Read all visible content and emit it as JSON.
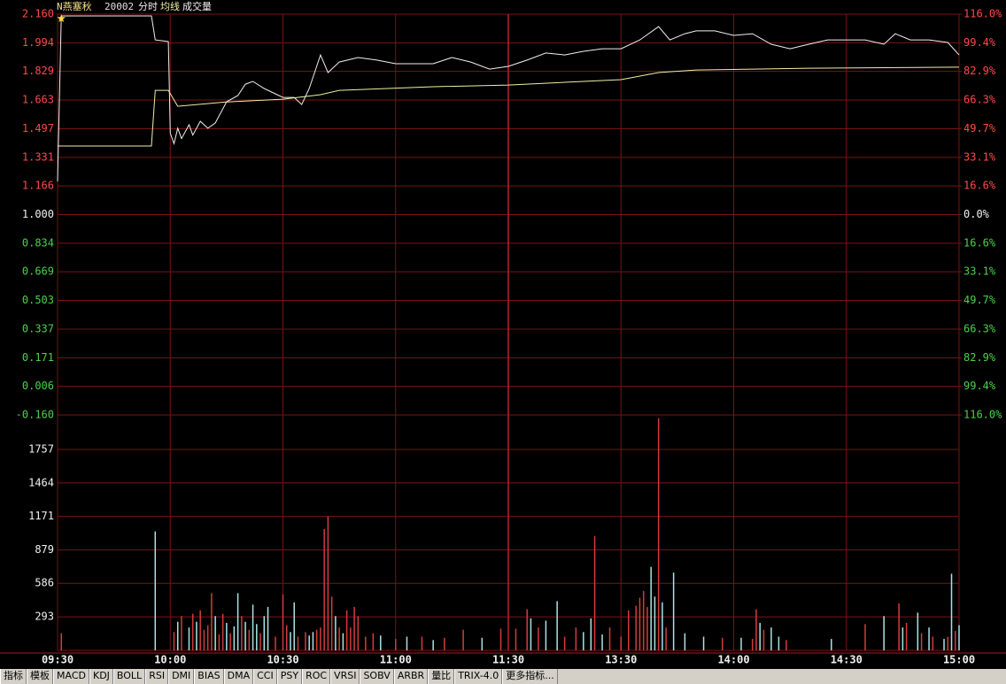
{
  "chart_data": [
    {
      "type": "line",
      "title": "N燕塞秋",
      "subtitle": "20002",
      "header_label": "成交量",
      "ylim": [
        -0.16,
        2.16
      ],
      "yticks": [
        {
          "value": 2.16,
          "label": "2.160"
        },
        1.994,
        1.829,
        1.663,
        1.497,
        1.331,
        1.166,
        {
          "value": 1.0,
          "label": "1.000"
        },
        0.834,
        0.669,
        0.503,
        0.337,
        0.171,
        0.006,
        {
          "value": -0.16,
          "label": "-0.160"
        }
      ],
      "y2lim": [
        -116,
        116
      ],
      "y2ticks": [
        {
          "value": 116,
          "label": "116.0%"
        },
        {
          "value": 99.4,
          "label": "99.4%"
        },
        {
          "value": 82.9,
          "label": "82.9%"
        },
        {
          "value": 66.3,
          "label": "66.3%"
        },
        {
          "value": 49.7,
          "label": "49.7%"
        },
        {
          "value": 33.1,
          "label": "33.1%"
        },
        {
          "value": 16.6,
          "label": "16.6%"
        },
        {
          "value": 0,
          "label": "0.0%"
        },
        {
          "value": -16.6,
          "label": "16.6%"
        },
        {
          "value": -33.1,
          "label": "33.1%"
        },
        {
          "value": -49.7,
          "label": "49.7%"
        },
        {
          "value": -66.3,
          "label": "66.3%"
        },
        {
          "value": -82.9,
          "label": "82.9%"
        },
        {
          "value": -99.4,
          "label": "99.4%"
        },
        {
          "value": -116,
          "label": "116.0%"
        }
      ],
      "grid": true,
      "series": [
        {
          "name": "分时",
          "color": "#f0f0f0",
          "x": [
            0,
            1,
            25,
            26,
            29.5,
            30,
            31,
            32,
            33,
            35,
            36,
            38,
            40,
            42,
            45,
            48,
            50,
            52,
            55,
            60,
            63,
            65,
            67,
            70,
            72,
            75,
            80,
            85,
            90,
            100,
            105,
            110,
            115,
            120,
            125,
            130,
            135,
            140,
            145,
            150,
            155,
            160,
            163,
            167,
            170,
            175,
            180,
            185,
            190,
            195,
            200,
            205,
            210,
            215,
            220,
            223,
            227,
            232,
            237,
            240
          ],
          "values": [
            1.192,
            2.15,
            2.15,
            2.011,
            2.001,
            1.47,
            1.41,
            1.5,
            1.44,
            1.52,
            1.46,
            1.54,
            1.5,
            1.53,
            1.653,
            1.689,
            1.755,
            1.771,
            1.73,
            1.678,
            1.678,
            1.637,
            1.73,
            1.924,
            1.822,
            1.883,
            1.909,
            1.894,
            1.873,
            1.873,
            1.909,
            1.883,
            1.842,
            1.858,
            1.894,
            1.935,
            1.924,
            1.945,
            1.96,
            1.96,
            2.011,
            2.088,
            2.011,
            2.047,
            2.063,
            2.063,
            2.037,
            2.047,
            1.986,
            1.96,
            1.986,
            2.011,
            2.011,
            2.011,
            1.986,
            2.047,
            2.011,
            2.011,
            1.996,
            1.924
          ]
        },
        {
          "name": "均线",
          "color": "#f0f0a8",
          "x": [
            0,
            25,
            26,
            29.5,
            32,
            45,
            60,
            70,
            75,
            100,
            120,
            150,
            160,
            170,
            200,
            240
          ],
          "values": [
            1.397,
            1.397,
            1.719,
            1.719,
            1.627,
            1.652,
            1.668,
            1.694,
            1.719,
            1.74,
            1.75,
            1.781,
            1.822,
            1.837,
            1.847,
            1.853
          ]
        }
      ]
    },
    {
      "type": "bar",
      "ylim": [
        0,
        2050
      ],
      "yticks": [
        1757,
        1464,
        1171,
        879,
        586,
        293
      ],
      "xlim": [
        0,
        240
      ],
      "xticks": [
        {
          "value": 0,
          "label": "09:30"
        },
        {
          "value": 30,
          "label": "10:00"
        },
        {
          "value": 60,
          "label": "10:30"
        },
        {
          "value": 90,
          "label": "11:00"
        },
        {
          "value": 120,
          "label": "11:30"
        },
        {
          "value": 150,
          "label": "13:30"
        },
        {
          "value": 180,
          "label": "14:00"
        },
        {
          "value": 210,
          "label": "14:30"
        },
        {
          "value": 240,
          "label": "15:00"
        }
      ],
      "x": [
        1,
        26,
        31,
        32,
        33,
        35,
        36,
        37,
        38,
        39,
        40,
        41,
        42,
        43,
        44,
        45,
        46,
        47,
        48,
        49,
        50,
        51,
        52,
        53,
        54,
        55,
        56,
        58,
        60,
        61,
        62,
        63,
        64,
        66,
        67,
        68,
        69,
        70,
        71,
        72,
        73,
        74,
        75,
        76,
        77,
        78,
        79,
        80,
        82,
        84,
        86,
        90,
        93,
        97,
        100,
        103,
        108,
        113,
        118,
        122,
        125,
        126,
        128,
        130,
        133,
        135,
        138,
        140,
        142,
        143,
        145,
        147,
        150,
        152,
        154,
        155,
        156,
        157,
        158,
        159,
        160,
        161,
        162,
        164,
        167,
        172,
        177,
        182,
        185,
        186,
        187,
        188,
        190,
        192,
        194,
        206,
        215,
        220,
        224,
        225,
        226,
        229,
        230,
        232,
        233,
        236,
        237,
        238,
        239,
        240
      ],
      "values": [
        150,
        1040,
        160,
        250,
        300,
        200,
        320,
        250,
        350,
        180,
        220,
        500,
        300,
        140,
        320,
        240,
        150,
        210,
        500,
        300,
        250,
        180,
        400,
        230,
        150,
        300,
        380,
        120,
        490,
        220,
        160,
        420,
        120,
        160,
        130,
        160,
        180,
        200,
        1060,
        1170,
        470,
        300,
        200,
        150,
        350,
        200,
        380,
        300,
        120,
        150,
        130,
        100,
        120,
        120,
        90,
        110,
        180,
        110,
        190,
        190,
        360,
        280,
        200,
        260,
        430,
        120,
        200,
        160,
        280,
        1000,
        140,
        200,
        120,
        350,
        390,
        460,
        520,
        380,
        730,
        470,
        2030,
        420,
        200,
        680,
        150,
        120,
        110,
        110,
        100,
        360,
        240,
        180,
        200,
        120,
        90,
        100,
        230,
        300,
        410,
        200,
        240,
        330,
        150,
        200,
        120,
        100,
        120,
        670,
        170,
        220
      ],
      "colors": [
        "r",
        "c",
        "r",
        "c",
        "r",
        "c",
        "r",
        "c",
        "r",
        "r",
        "r",
        "r",
        "c",
        "r",
        "r",
        "c",
        "r",
        "c",
        "c",
        "r",
        "c",
        "r",
        "c",
        "c",
        "r",
        "c",
        "c",
        "r",
        "r",
        "r",
        "c",
        "c",
        "r",
        "r",
        "c",
        "c",
        "r",
        "r",
        "r",
        "r",
        "r",
        "c",
        "r",
        "c",
        "r",
        "r",
        "r",
        "r",
        "r",
        "r",
        "c",
        "r",
        "c",
        "r",
        "c",
        "r",
        "r",
        "c",
        "r",
        "r",
        "r",
        "c",
        "r",
        "c",
        "c",
        "r",
        "r",
        "c",
        "c",
        "r",
        "c",
        "r",
        "r",
        "r",
        "r",
        "r",
        "r",
        "r",
        "c",
        "c",
        "r",
        "c",
        "r",
        "c",
        "c",
        "c",
        "r",
        "c",
        "r",
        "r",
        "c",
        "r",
        "c",
        "c",
        "r",
        "c",
        "r",
        "c",
        "r",
        "c",
        "r",
        "c",
        "r",
        "c",
        "r",
        "c",
        "r",
        "c",
        "r",
        "c"
      ],
      "up_color": "#d23c3c",
      "down_color": "#a8e4e4",
      "series_name_ref": "chart_data.0.header_label"
    }
  ],
  "toolbar": [
    "指标",
    "模板",
    "MACD",
    "KDJ",
    "BOLL",
    "RSI",
    "DMI",
    "BIAS",
    "DMA",
    "CCI",
    "PSY",
    "ROC",
    "VRSI",
    "SOBV",
    "ARBR",
    "量比",
    "TRIX-4.0",
    "更多指标..."
  ]
}
